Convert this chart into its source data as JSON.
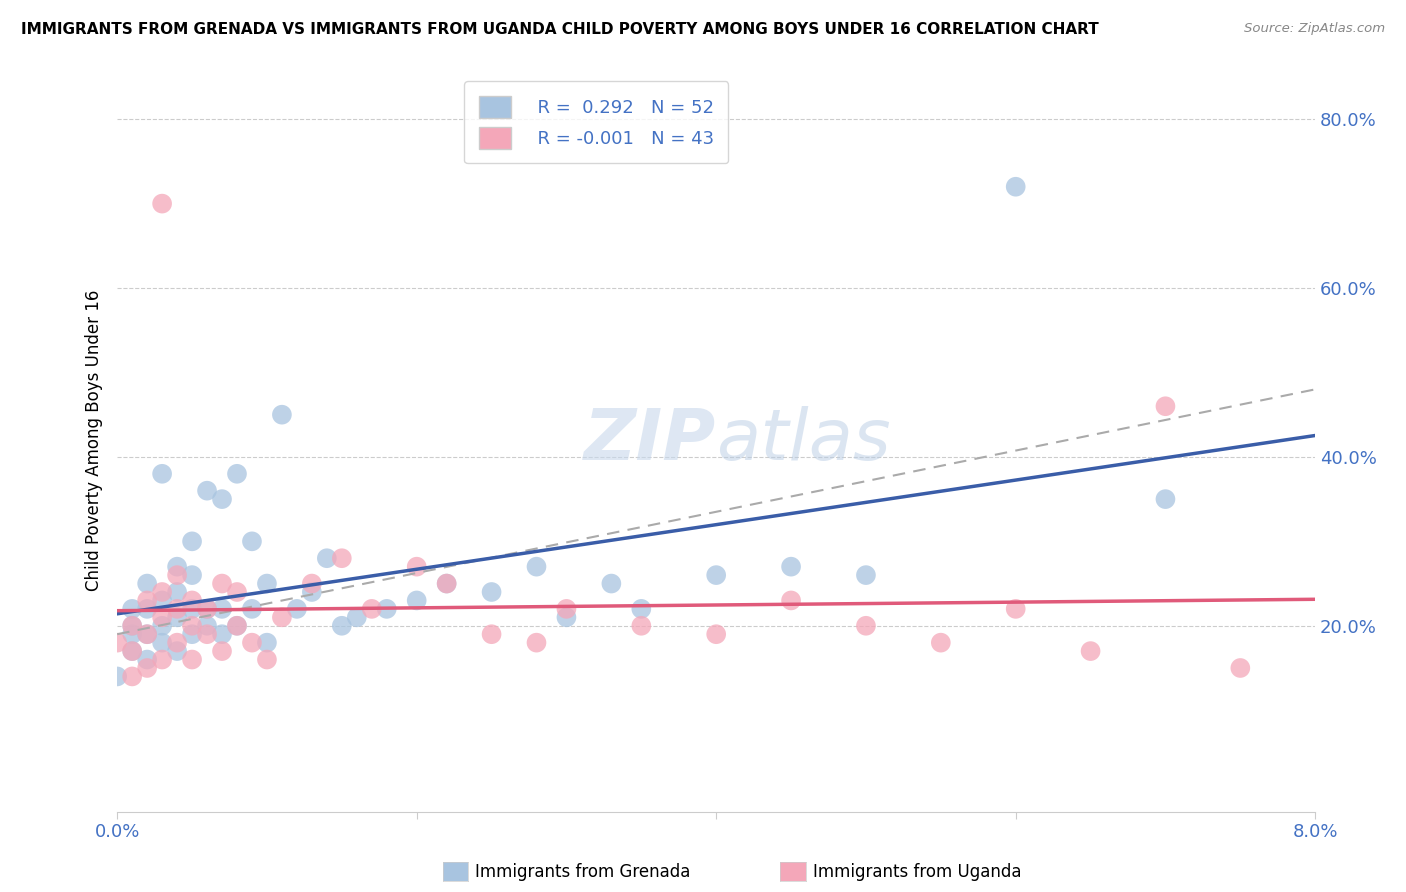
{
  "title": "IMMIGRANTS FROM GRENADA VS IMMIGRANTS FROM UGANDA CHILD POVERTY AMONG BOYS UNDER 16 CORRELATION CHART",
  "source": "Source: ZipAtlas.com",
  "ylabel": "Child Poverty Among Boys Under 16",
  "xlim": [
    0.0,
    0.08
  ],
  "ylim": [
    -0.02,
    0.86
  ],
  "legend1_label": "R =  0.292   N = 52",
  "legend2_label": "R = -0.001   N = 43",
  "series1_color": "#a8c4e0",
  "series2_color": "#f4a7b9",
  "trendline1_color": "#3a5da8",
  "trendline2_color": "#e05a7a",
  "background_color": "#ffffff",
  "grenada_x": [
    0.0,
    0.001,
    0.001,
    0.001,
    0.001,
    0.002,
    0.002,
    0.002,
    0.002,
    0.003,
    0.003,
    0.003,
    0.003,
    0.004,
    0.004,
    0.004,
    0.004,
    0.005,
    0.005,
    0.005,
    0.005,
    0.006,
    0.006,
    0.006,
    0.007,
    0.007,
    0.007,
    0.008,
    0.008,
    0.009,
    0.009,
    0.01,
    0.01,
    0.011,
    0.012,
    0.013,
    0.014,
    0.015,
    0.016,
    0.018,
    0.02,
    0.022,
    0.025,
    0.028,
    0.03,
    0.033,
    0.035,
    0.04,
    0.045,
    0.05,
    0.06,
    0.07
  ],
  "grenada_y": [
    0.14,
    0.17,
    0.19,
    0.2,
    0.22,
    0.16,
    0.19,
    0.22,
    0.25,
    0.18,
    0.2,
    0.23,
    0.38,
    0.17,
    0.21,
    0.24,
    0.27,
    0.19,
    0.22,
    0.26,
    0.3,
    0.2,
    0.22,
    0.36,
    0.19,
    0.22,
    0.35,
    0.2,
    0.38,
    0.22,
    0.3,
    0.18,
    0.25,
    0.45,
    0.22,
    0.24,
    0.28,
    0.2,
    0.21,
    0.22,
    0.23,
    0.25,
    0.24,
    0.27,
    0.21,
    0.25,
    0.22,
    0.26,
    0.27,
    0.26,
    0.72,
    0.35
  ],
  "uganda_x": [
    0.0,
    0.001,
    0.001,
    0.001,
    0.002,
    0.002,
    0.002,
    0.003,
    0.003,
    0.003,
    0.003,
    0.004,
    0.004,
    0.004,
    0.005,
    0.005,
    0.005,
    0.006,
    0.006,
    0.007,
    0.007,
    0.008,
    0.008,
    0.009,
    0.01,
    0.011,
    0.013,
    0.015,
    0.017,
    0.02,
    0.022,
    0.025,
    0.028,
    0.03,
    0.035,
    0.04,
    0.045,
    0.05,
    0.055,
    0.06,
    0.065,
    0.07,
    0.075
  ],
  "uganda_y": [
    0.18,
    0.14,
    0.17,
    0.2,
    0.15,
    0.19,
    0.23,
    0.16,
    0.21,
    0.24,
    0.7,
    0.18,
    0.22,
    0.26,
    0.16,
    0.2,
    0.23,
    0.19,
    0.22,
    0.17,
    0.25,
    0.2,
    0.24,
    0.18,
    0.16,
    0.21,
    0.25,
    0.28,
    0.22,
    0.27,
    0.25,
    0.19,
    0.18,
    0.22,
    0.2,
    0.19,
    0.23,
    0.2,
    0.18,
    0.22,
    0.17,
    0.46,
    0.15
  ]
}
